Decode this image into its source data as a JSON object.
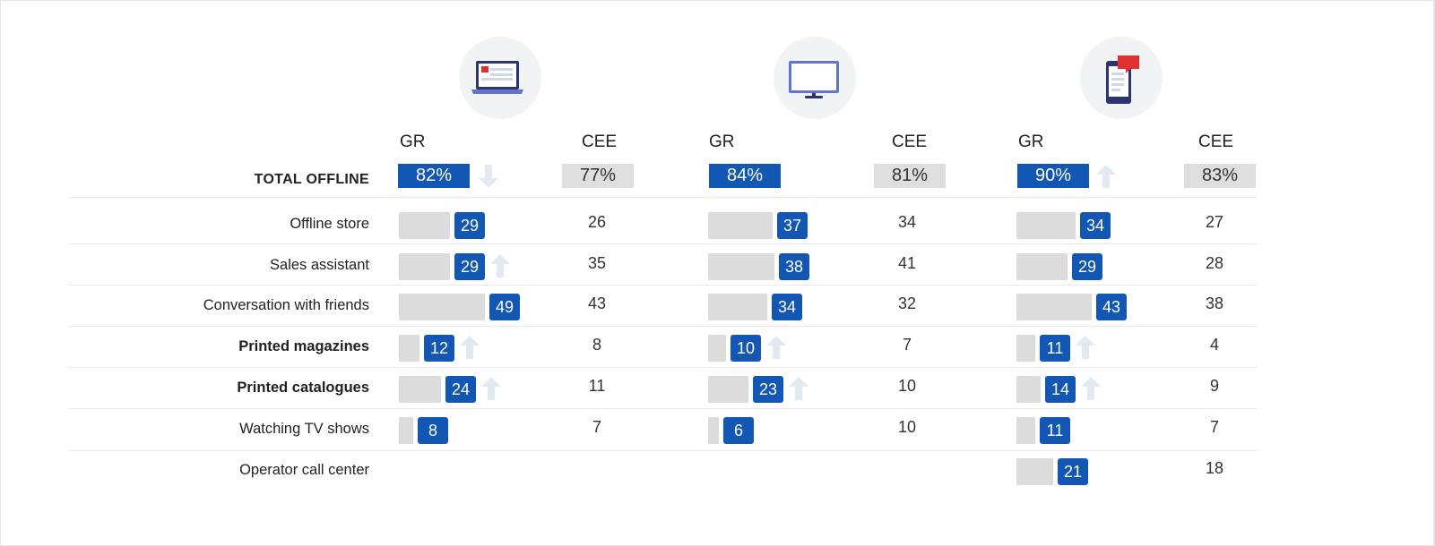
{
  "chart_data": {
    "type": "table",
    "colors": {
      "gr": "#1257b3",
      "cee": "#dedede",
      "bar": "#dcdcdc",
      "arrow": "#e3e9f1"
    },
    "groups": [
      {
        "icon": "laptop-icon",
        "gr_header": "GR",
        "cee_header": "CEE",
        "total_gr": "82%",
        "total_cee": "77%",
        "total_trend": "down"
      },
      {
        "icon": "monitor-icon",
        "gr_header": "GR",
        "cee_header": "CEE",
        "total_gr": "84%",
        "total_cee": "81%",
        "total_trend": ""
      },
      {
        "icon": "smartphone-icon",
        "gr_header": "GR",
        "cee_header": "CEE",
        "total_gr": "90%",
        "total_cee": "83%",
        "total_trend": "up"
      }
    ],
    "total_label": "TOTAL OFFLINE",
    "rows": [
      {
        "label": "Offline store",
        "bold": false,
        "gr": [
          29,
          37,
          34
        ],
        "cee": [
          26,
          34,
          27
        ],
        "trend": [
          "",
          "",
          ""
        ]
      },
      {
        "label": "Sales assistant",
        "bold": false,
        "gr": [
          29,
          38,
          29
        ],
        "cee": [
          35,
          41,
          28
        ],
        "trend": [
          "up",
          "",
          ""
        ]
      },
      {
        "label": "Conversation with friends",
        "bold": false,
        "gr": [
          49,
          34,
          43
        ],
        "cee": [
          43,
          32,
          38
        ],
        "trend": [
          "",
          "",
          ""
        ]
      },
      {
        "label": "Printed magazines",
        "bold": true,
        "gr": [
          12,
          10,
          11
        ],
        "cee": [
          8,
          7,
          4
        ],
        "trend": [
          "up",
          "up",
          "up"
        ]
      },
      {
        "label": "Printed catalogues",
        "bold": true,
        "gr": [
          24,
          23,
          14
        ],
        "cee": [
          11,
          10,
          9
        ],
        "trend": [
          "up",
          "up",
          "up"
        ]
      },
      {
        "label": "Watching TV shows",
        "bold": false,
        "gr": [
          8,
          6,
          11
        ],
        "cee": [
          7,
          10,
          7
        ],
        "trend": [
          "",
          "",
          ""
        ]
      },
      {
        "label": "Operator call center",
        "bold": false,
        "gr": [
          null,
          null,
          21
        ],
        "cee": [
          null,
          null,
          18
        ],
        "trend": [
          "",
          "",
          ""
        ]
      }
    ]
  }
}
